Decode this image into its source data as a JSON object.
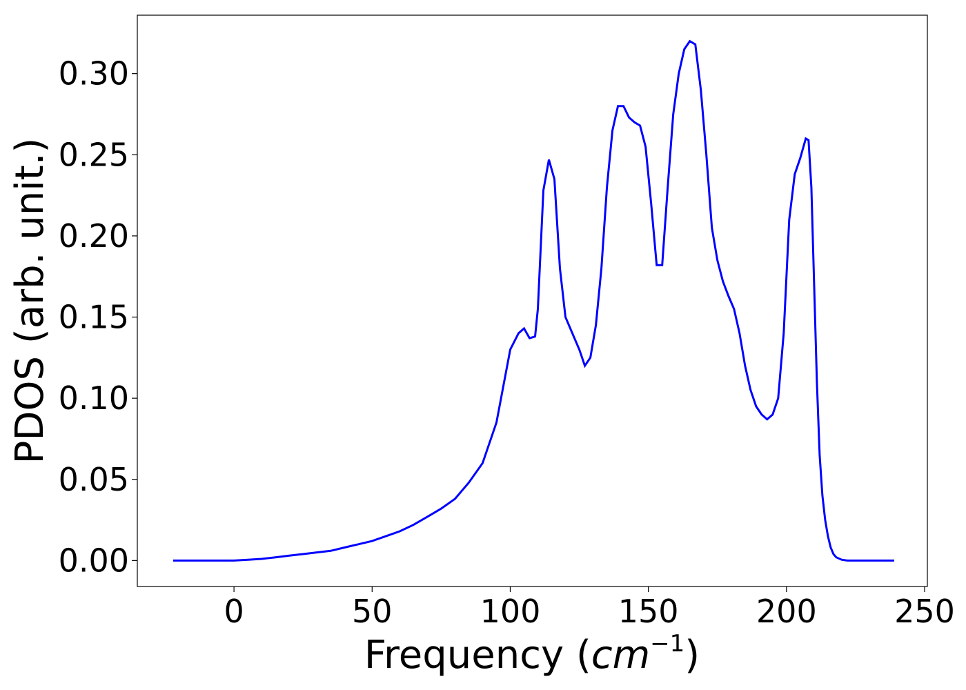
{
  "chart_data": {
    "type": "line",
    "title": "",
    "xlabel_main": "Frequency (",
    "xlabel_unit": "cm",
    "xlabel_exp": "−1",
    "xlabel_close": ")",
    "ylabel": "PDOS (arb. unit.)",
    "xlim": [
      -35,
      251
    ],
    "ylim": [
      -0.016,
      0.336
    ],
    "x_ticks": [
      0,
      50,
      100,
      150,
      200,
      250
    ],
    "x_tick_labels": [
      "0",
      "50",
      "100",
      "150",
      "200",
      "250"
    ],
    "y_ticks": [
      0.0,
      0.05,
      0.1,
      0.15,
      0.2,
      0.25,
      0.3
    ],
    "y_tick_labels": [
      "0.00",
      "0.05",
      "0.10",
      "0.15",
      "0.20",
      "0.25",
      "0.30"
    ],
    "grid": false,
    "line_color": "#0000ff",
    "series": [
      {
        "x": [
          -22,
          0,
          5,
          10,
          15,
          20,
          25,
          30,
          35,
          40,
          45,
          50,
          55,
          60,
          65,
          70,
          75,
          80,
          85,
          90,
          95,
          100,
          103,
          105,
          107,
          109,
          110,
          112,
          114,
          116,
          118,
          120,
          122,
          125,
          127,
          129,
          131,
          133,
          135,
          137,
          139,
          141,
          143,
          145,
          147,
          149,
          151,
          153,
          155,
          157,
          159,
          161,
          163,
          165,
          167,
          169,
          171,
          173,
          175,
          177,
          179,
          181,
          183,
          185,
          187,
          189,
          191,
          193,
          195,
          197,
          199,
          201,
          203,
          205,
          207,
          208,
          209,
          210,
          211,
          212,
          213,
          214,
          215,
          216,
          217,
          218,
          220,
          222,
          225,
          230,
          239
        ],
        "y": [
          0.0,
          0.0,
          0.0005,
          0.001,
          0.002,
          0.003,
          0.004,
          0.005,
          0.006,
          0.008,
          0.01,
          0.012,
          0.015,
          0.018,
          0.022,
          0.027,
          0.032,
          0.038,
          0.048,
          0.06,
          0.085,
          0.13,
          0.14,
          0.143,
          0.137,
          0.138,
          0.155,
          0.228,
          0.247,
          0.235,
          0.18,
          0.15,
          0.142,
          0.13,
          0.12,
          0.125,
          0.145,
          0.18,
          0.23,
          0.265,
          0.28,
          0.28,
          0.273,
          0.27,
          0.268,
          0.255,
          0.22,
          0.182,
          0.182,
          0.23,
          0.275,
          0.3,
          0.315,
          0.32,
          0.318,
          0.29,
          0.25,
          0.205,
          0.185,
          0.172,
          0.163,
          0.155,
          0.14,
          0.12,
          0.105,
          0.095,
          0.09,
          0.087,
          0.09,
          0.1,
          0.14,
          0.21,
          0.238,
          0.248,
          0.26,
          0.259,
          0.23,
          0.17,
          0.11,
          0.065,
          0.04,
          0.025,
          0.015,
          0.008,
          0.004,
          0.002,
          0.0005,
          0.0,
          0.0,
          0.0,
          0.0
        ]
      }
    ]
  }
}
